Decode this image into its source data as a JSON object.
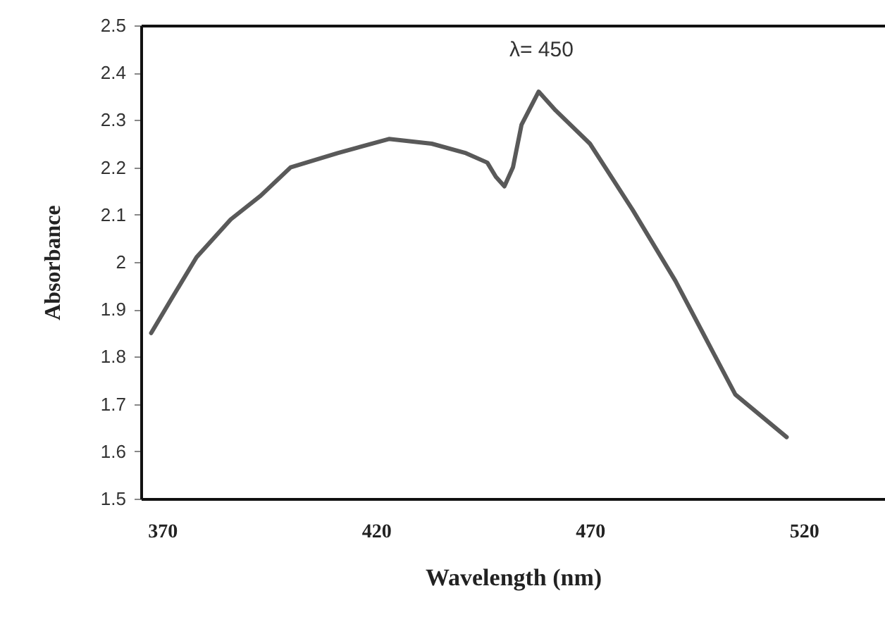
{
  "chart_data": {
    "type": "line",
    "xlabel": "Wavelength (nm)",
    "ylabel": "Absorbance",
    "x": [
      367.4,
      372,
      378,
      386,
      393,
      400,
      411,
      423,
      433,
      441,
      446,
      448,
      450,
      452,
      454,
      458,
      462,
      470,
      480,
      490,
      497,
      504,
      516
    ],
    "series": [
      {
        "color": "#595959",
        "values": [
          1.85,
          1.92,
          2.01,
          2.09,
          2.14,
          2.2,
          2.23,
          2.26,
          2.25,
          2.23,
          2.21,
          2.18,
          2.16,
          2.2,
          2.29,
          2.36,
          2.32,
          2.25,
          2.11,
          1.96,
          1.84,
          1.72,
          1.63
        ]
      }
    ],
    "xlim": [
      365,
      539
    ],
    "xticks": [
      370,
      420,
      470,
      520
    ],
    "ylim": [
      1.5,
      2.5
    ],
    "yticks": [
      1.5,
      1.6,
      1.7,
      1.8,
      1.9,
      2,
      2.1,
      2.2,
      2.3,
      2.4,
      2.5
    ],
    "grid": false,
    "marker": "none",
    "line_style": "solid",
    "annotations": [
      {
        "text": "λ= 450",
        "x": 458,
        "y": 2.36
      }
    ]
  }
}
